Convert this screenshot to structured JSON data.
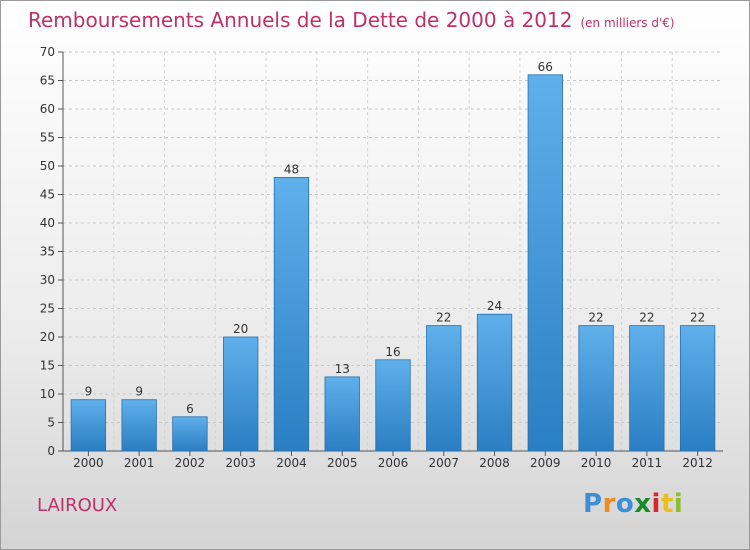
{
  "title": "Remboursements Annuels de la Dette de 2000 à 2012",
  "unit": "(en milliers d'€)",
  "commune": "LAIROUX",
  "brand": {
    "letters": [
      "P",
      "r",
      "o",
      "x",
      "i",
      "t",
      "i"
    ],
    "colors": [
      "#3a8fd8",
      "#f08a1a",
      "#3a8fd8",
      "#1a8a2a",
      "#d8262b",
      "#e9c018",
      "#8bbf2f"
    ]
  },
  "colors": {
    "accent": "#c0306a",
    "bar_light": "#5fb0eb",
    "bar_dark": "#2a7ec2"
  },
  "chart_data": {
    "type": "bar",
    "categories": [
      "2000",
      "2001",
      "2002",
      "2003",
      "2004",
      "2005",
      "2006",
      "2007",
      "2008",
      "2009",
      "2010",
      "2011",
      "2012"
    ],
    "values": [
      9,
      9,
      6,
      20,
      48,
      13,
      16,
      22,
      24,
      66,
      22,
      22,
      22
    ],
    "ylim": [
      0,
      70
    ],
    "yticks": [
      0,
      5,
      10,
      15,
      20,
      25,
      30,
      35,
      40,
      45,
      50,
      55,
      60,
      65,
      70
    ],
    "grid": true
  }
}
